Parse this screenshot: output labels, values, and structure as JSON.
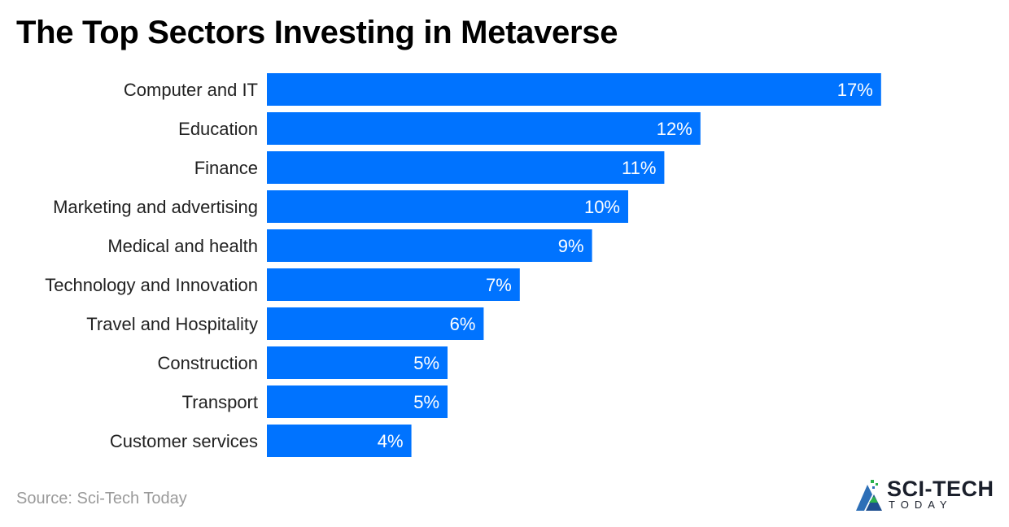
{
  "chart_data": {
    "type": "bar",
    "orientation": "horizontal",
    "title": "The Top Sectors Investing in Metaverse",
    "categories": [
      "Computer and IT",
      "Education",
      "Finance",
      "Marketing and advertising",
      "Medical and health",
      "Technology and Innovation",
      "Travel and Hospitality",
      "Construction",
      "Transport",
      "Customer services"
    ],
    "values": [
      17,
      12,
      11,
      10,
      9,
      7,
      6,
      5,
      5,
      4
    ],
    "value_labels": [
      "17%",
      "12%",
      "11%",
      "10%",
      "9%",
      "7%",
      "6%",
      "5%",
      "5%",
      "4%"
    ],
    "unit": "%",
    "bar_color": "#0073ff",
    "grid": false,
    "legend": "none"
  },
  "footer": {
    "source": "Source: Sci-Tech Today",
    "logo_main": "SCI-TECH",
    "logo_sub": "TODAY"
  },
  "logo_icon": "sci-tech-triangle-logo-icon"
}
